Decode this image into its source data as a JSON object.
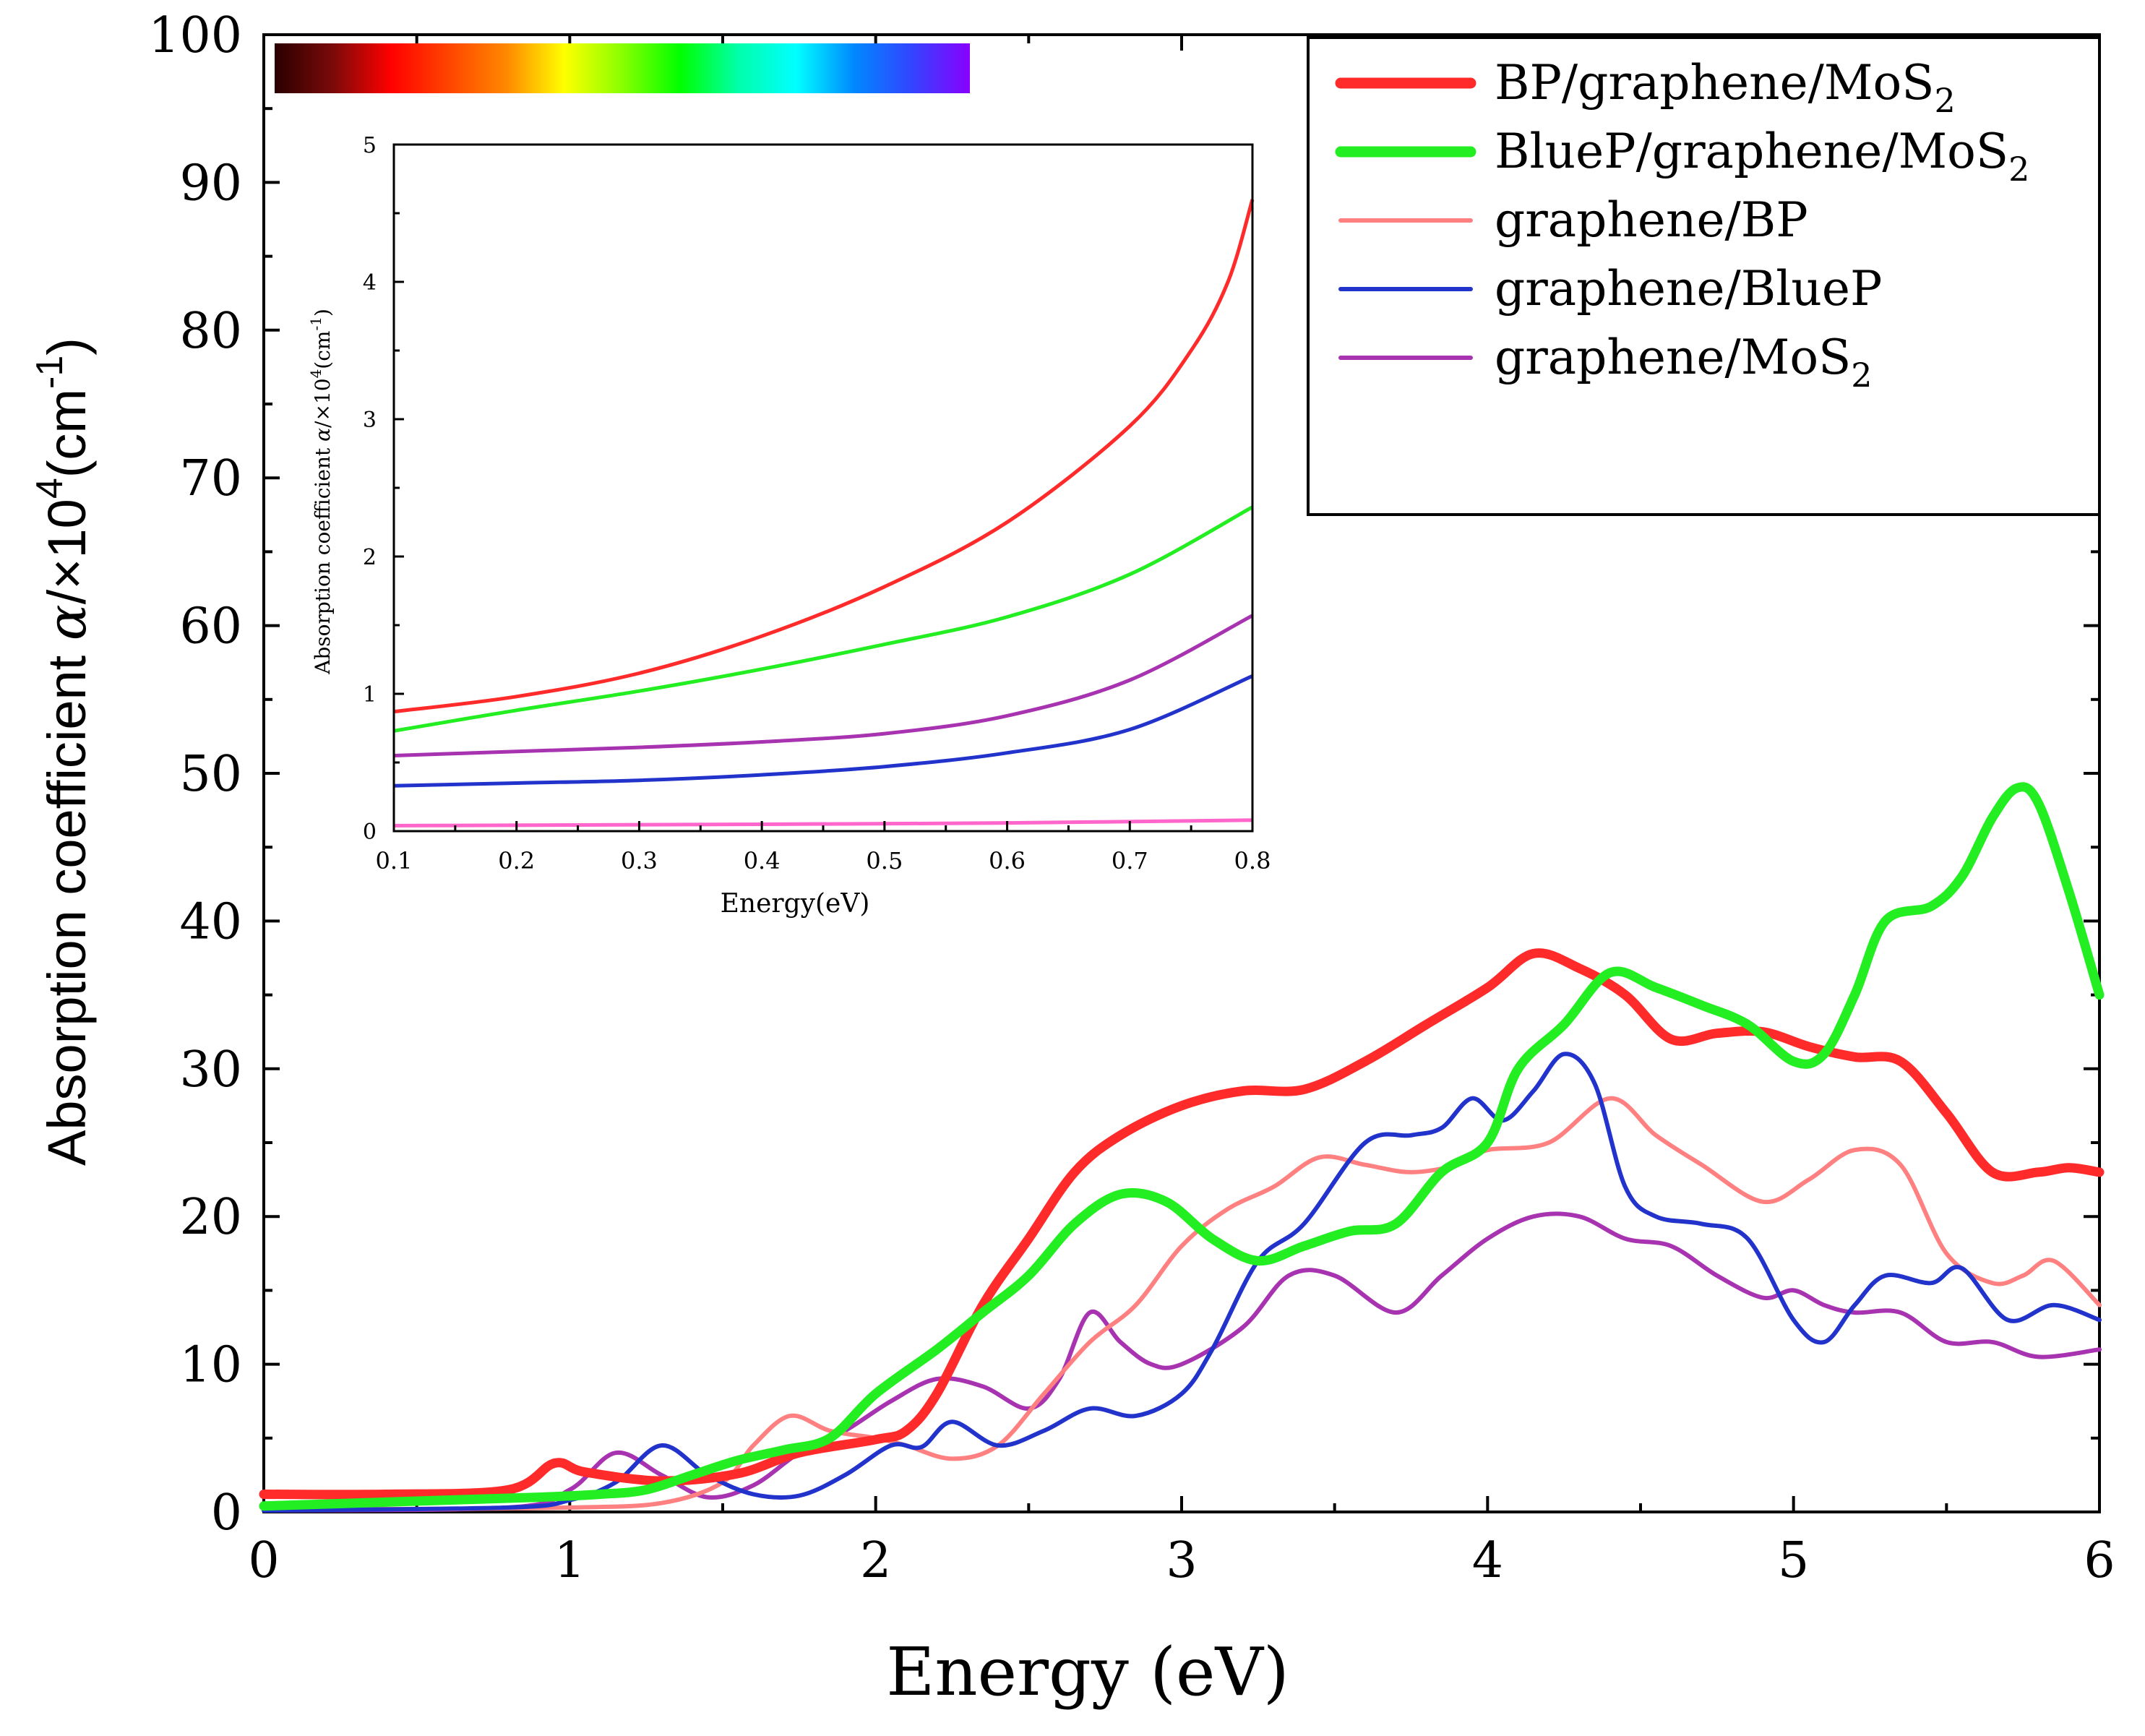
{
  "colors": {
    "bp_gmos2": "#ff2a2a",
    "bluep_gmos2": "#22ee22",
    "g_bp": "#ff8080",
    "g_bluep": "#2233cc",
    "g_mos2": "#a833b0",
    "inset_g_bp": "#ff66cc",
    "axis": "#000000"
  },
  "spectrum_bar": {
    "stops": [
      "#2a0000",
      "#7a0a0a",
      "#ff0000",
      "#ff4400",
      "#ff8800",
      "#ffff00",
      "#88ff00",
      "#00ff00",
      "#00ffaa",
      "#00ffff",
      "#0088ff",
      "#3344ff",
      "#8800ff"
    ]
  },
  "chart_data": [
    {
      "id": "main",
      "type": "line",
      "xlabel": "Energy (eV)",
      "ylabel_parts": [
        "Absorption coefficient ",
        "α",
        "/×10",
        "4",
        "(cm",
        "-1",
        ")"
      ],
      "xlim": [
        0,
        6
      ],
      "ylim": [
        0,
        100
      ],
      "xticks": [
        "0",
        "1",
        "2",
        "3",
        "4",
        "5",
        "6"
      ],
      "yticks": [
        "0",
        "10",
        "20",
        "30",
        "40",
        "50",
        "60",
        "70",
        "80",
        "90",
        "100"
      ],
      "legend_position": "top-right",
      "series": [
        {
          "key": "bp_gmos2",
          "legend": [
            "BP/graphene/MoS",
            "2"
          ],
          "color": "#ff2a2a",
          "weight": "thick",
          "points": [
            [
              0,
              1.2
            ],
            [
              0.4,
              1.2
            ],
            [
              0.8,
              1.5
            ],
            [
              0.95,
              3.3
            ],
            [
              1.05,
              2.7
            ],
            [
              1.3,
              2.1
            ],
            [
              1.55,
              2.6
            ],
            [
              1.75,
              4.0
            ],
            [
              2.0,
              4.9
            ],
            [
              2.1,
              5.5
            ],
            [
              2.2,
              8.0
            ],
            [
              2.35,
              14.0
            ],
            [
              2.5,
              18.5
            ],
            [
              2.65,
              23.0
            ],
            [
              2.8,
              25.5
            ],
            [
              3.0,
              27.5
            ],
            [
              3.2,
              28.5
            ],
            [
              3.4,
              28.6
            ],
            [
              3.6,
              30.5
            ],
            [
              3.8,
              33.0
            ],
            [
              4.0,
              35.5
            ],
            [
              4.15,
              37.8
            ],
            [
              4.3,
              36.8
            ],
            [
              4.45,
              35.0
            ],
            [
              4.6,
              32.0
            ],
            [
              4.75,
              32.4
            ],
            [
              4.9,
              32.5
            ],
            [
              5.05,
              31.5
            ],
            [
              5.2,
              30.8
            ],
            [
              5.35,
              30.5
            ],
            [
              5.5,
              27.0
            ],
            [
              5.65,
              23.0
            ],
            [
              5.8,
              23.0
            ],
            [
              5.9,
              23.3
            ],
            [
              6.0,
              23.0
            ]
          ]
        },
        {
          "key": "bluep_gmos2",
          "legend": [
            "BlueP/graphene/MoS",
            "2"
          ],
          "color": "#22ee22",
          "weight": "thick",
          "points": [
            [
              0,
              0.4
            ],
            [
              0.3,
              0.6
            ],
            [
              0.6,
              0.8
            ],
            [
              0.9,
              1.0
            ],
            [
              1.1,
              1.2
            ],
            [
              1.25,
              1.5
            ],
            [
              1.4,
              2.5
            ],
            [
              1.55,
              3.5
            ],
            [
              1.7,
              4.2
            ],
            [
              1.85,
              5.0
            ],
            [
              2.0,
              8.0
            ],
            [
              2.2,
              11.0
            ],
            [
              2.35,
              13.5
            ],
            [
              2.5,
              16.0
            ],
            [
              2.65,
              19.5
            ],
            [
              2.8,
              21.5
            ],
            [
              2.95,
              21.0
            ],
            [
              3.1,
              18.5
            ],
            [
              3.25,
              17.0
            ],
            [
              3.4,
              18.0
            ],
            [
              3.55,
              19.0
            ],
            [
              3.7,
              19.5
            ],
            [
              3.85,
              23.0
            ],
            [
              4.0,
              25.0
            ],
            [
              4.1,
              30.0
            ],
            [
              4.25,
              33.0
            ],
            [
              4.4,
              36.5
            ],
            [
              4.55,
              35.5
            ],
            [
              4.7,
              34.3
            ],
            [
              4.85,
              33.0
            ],
            [
              5.0,
              30.5
            ],
            [
              5.1,
              31.0
            ],
            [
              5.2,
              35.0
            ],
            [
              5.3,
              40.0
            ],
            [
              5.45,
              41.0
            ],
            [
              5.55,
              43.0
            ],
            [
              5.65,
              47.0
            ],
            [
              5.73,
              49.0
            ],
            [
              5.8,
              48.0
            ],
            [
              5.9,
              42.0
            ],
            [
              6.0,
              35.0
            ]
          ]
        },
        {
          "key": "g_bp",
          "legend": [
            "graphene/BP",
            ""
          ],
          "color": "#ff8080",
          "weight": "medium",
          "points": [
            [
              0,
              0.2
            ],
            [
              0.5,
              0.2
            ],
            [
              1.0,
              0.3
            ],
            [
              1.3,
              0.6
            ],
            [
              1.5,
              2.0
            ],
            [
              1.6,
              4.5
            ],
            [
              1.72,
              6.5
            ],
            [
              1.85,
              5.5
            ],
            [
              2.0,
              5.0
            ],
            [
              2.1,
              4.5
            ],
            [
              2.25,
              3.6
            ],
            [
              2.4,
              4.5
            ],
            [
              2.55,
              8.0
            ],
            [
              2.7,
              11.5
            ],
            [
              2.85,
              14.0
            ],
            [
              3.0,
              18.0
            ],
            [
              3.15,
              20.5
            ],
            [
              3.3,
              22.0
            ],
            [
              3.45,
              24.0
            ],
            [
              3.6,
              23.5
            ],
            [
              3.75,
              23.0
            ],
            [
              3.9,
              23.5
            ],
            [
              4.0,
              24.5
            ],
            [
              4.2,
              25.0
            ],
            [
              4.4,
              28.0
            ],
            [
              4.55,
              25.5
            ],
            [
              4.7,
              23.5
            ],
            [
              4.9,
              21.0
            ],
            [
              5.05,
              22.5
            ],
            [
              5.2,
              24.5
            ],
            [
              5.35,
              23.5
            ],
            [
              5.5,
              17.5
            ],
            [
              5.65,
              15.5
            ],
            [
              5.75,
              16.0
            ],
            [
              5.85,
              17.0
            ],
            [
              6.0,
              14.0
            ]
          ]
        },
        {
          "key": "g_bluep",
          "legend": [
            "graphene/BlueP",
            ""
          ],
          "color": "#2233cc",
          "weight": "medium",
          "points": [
            [
              0,
              0.1
            ],
            [
              0.8,
              0.3
            ],
            [
              1.0,
              0.8
            ],
            [
              1.15,
              2.0
            ],
            [
              1.3,
              4.5
            ],
            [
              1.45,
              2.5
            ],
            [
              1.6,
              1.2
            ],
            [
              1.75,
              1.1
            ],
            [
              1.9,
              2.5
            ],
            [
              2.05,
              4.5
            ],
            [
              2.15,
              4.4
            ],
            [
              2.25,
              6.1
            ],
            [
              2.4,
              4.5
            ],
            [
              2.55,
              5.5
            ],
            [
              2.7,
              7.0
            ],
            [
              2.85,
              6.5
            ],
            [
              3.0,
              8.0
            ],
            [
              3.1,
              11.0
            ],
            [
              3.25,
              17.0
            ],
            [
              3.4,
              19.5
            ],
            [
              3.6,
              25.0
            ],
            [
              3.75,
              25.5
            ],
            [
              3.85,
              26.0
            ],
            [
              3.95,
              28.0
            ],
            [
              4.05,
              26.5
            ],
            [
              4.15,
              28.5
            ],
            [
              4.25,
              31.0
            ],
            [
              4.35,
              29.0
            ],
            [
              4.45,
              22.0
            ],
            [
              4.55,
              20.0
            ],
            [
              4.7,
              19.5
            ],
            [
              4.85,
              18.5
            ],
            [
              5.0,
              13.0
            ],
            [
              5.1,
              11.5
            ],
            [
              5.2,
              14.0
            ],
            [
              5.3,
              16.0
            ],
            [
              5.45,
              15.5
            ],
            [
              5.55,
              16.5
            ],
            [
              5.7,
              13.0
            ],
            [
              5.85,
              14.0
            ],
            [
              6.0,
              13.0
            ]
          ]
        },
        {
          "key": "g_mos2",
          "legend": [
            "graphene/MoS",
            "2"
          ],
          "color": "#a833b0",
          "weight": "medium",
          "points": [
            [
              0,
              0.1
            ],
            [
              0.8,
              0.3
            ],
            [
              1.0,
              1.5
            ],
            [
              1.15,
              4.0
            ],
            [
              1.3,
              2.5
            ],
            [
              1.45,
              1.0
            ],
            [
              1.6,
              1.8
            ],
            [
              1.75,
              4.0
            ],
            [
              1.9,
              5.5
            ],
            [
              2.05,
              7.5
            ],
            [
              2.2,
              9.0
            ],
            [
              2.35,
              8.5
            ],
            [
              2.5,
              7.0
            ],
            [
              2.6,
              9.0
            ],
            [
              2.7,
              13.5
            ],
            [
              2.8,
              11.5
            ],
            [
              2.9,
              10.0
            ],
            [
              3.0,
              10.0
            ],
            [
              3.2,
              12.5
            ],
            [
              3.35,
              16.0
            ],
            [
              3.5,
              16.0
            ],
            [
              3.7,
              13.5
            ],
            [
              3.85,
              16.0
            ],
            [
              4.0,
              18.5
            ],
            [
              4.15,
              20.0
            ],
            [
              4.3,
              20.0
            ],
            [
              4.45,
              18.5
            ],
            [
              4.6,
              18.0
            ],
            [
              4.75,
              16.0
            ],
            [
              4.9,
              14.5
            ],
            [
              5.0,
              15.0
            ],
            [
              5.1,
              14.0
            ],
            [
              5.2,
              13.5
            ],
            [
              5.35,
              13.5
            ],
            [
              5.5,
              11.5
            ],
            [
              5.65,
              11.5
            ],
            [
              5.8,
              10.5
            ],
            [
              6.0,
              11.0
            ]
          ]
        }
      ]
    },
    {
      "id": "inset",
      "type": "line",
      "xlabel": "Energy(eV)",
      "ylabel_parts": [
        "Absorption coefficient ",
        "α",
        "/×10",
        "4",
        "(cm",
        "-1",
        ")"
      ],
      "xlim": [
        0.1,
        0.8
      ],
      "ylim": [
        0,
        5
      ],
      "xticks": [
        "0.1",
        "0.2",
        "0.3",
        "0.4",
        "0.5",
        "0.6",
        "0.7",
        "0.8"
      ],
      "yticks": [
        "0",
        "1",
        "2",
        "3",
        "4",
        "5"
      ],
      "series": [
        {
          "key": "bp_gmos2",
          "color": "#ff2a2a",
          "points": [
            [
              0.1,
              0.87
            ],
            [
              0.2,
              0.98
            ],
            [
              0.3,
              1.15
            ],
            [
              0.4,
              1.42
            ],
            [
              0.5,
              1.78
            ],
            [
              0.6,
              2.25
            ],
            [
              0.7,
              2.95
            ],
            [
              0.75,
              3.5
            ],
            [
              0.78,
              4.0
            ],
            [
              0.8,
              4.6
            ]
          ]
        },
        {
          "key": "bluep_gmos2",
          "color": "#22ee22",
          "points": [
            [
              0.1,
              0.73
            ],
            [
              0.2,
              0.88
            ],
            [
              0.3,
              1.02
            ],
            [
              0.4,
              1.18
            ],
            [
              0.5,
              1.36
            ],
            [
              0.6,
              1.56
            ],
            [
              0.7,
              1.87
            ],
            [
              0.8,
              2.36
            ]
          ]
        },
        {
          "key": "g_mos2",
          "color": "#a833b0",
          "points": [
            [
              0.1,
              0.55
            ],
            [
              0.2,
              0.58
            ],
            [
              0.3,
              0.61
            ],
            [
              0.4,
              0.65
            ],
            [
              0.5,
              0.71
            ],
            [
              0.6,
              0.84
            ],
            [
              0.7,
              1.1
            ],
            [
              0.8,
              1.57
            ]
          ]
        },
        {
          "key": "g_bluep",
          "color": "#2233cc",
          "points": [
            [
              0.1,
              0.33
            ],
            [
              0.2,
              0.35
            ],
            [
              0.3,
              0.37
            ],
            [
              0.4,
              0.41
            ],
            [
              0.5,
              0.47
            ],
            [
              0.6,
              0.57
            ],
            [
              0.7,
              0.74
            ],
            [
              0.8,
              1.13
            ]
          ]
        },
        {
          "key": "inset_g_bp",
          "color": "#ff66cc",
          "points": [
            [
              0.1,
              0.04
            ],
            [
              0.4,
              0.05
            ],
            [
              0.6,
              0.06
            ],
            [
              0.8,
              0.08
            ]
          ]
        }
      ]
    }
  ]
}
